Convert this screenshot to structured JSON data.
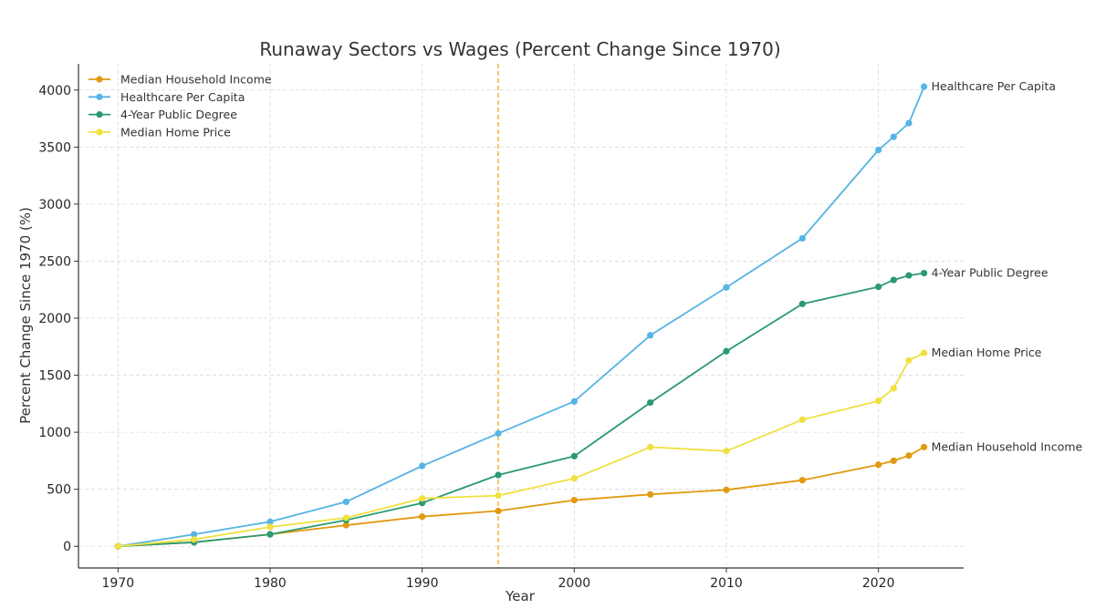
{
  "chart_data": {
    "type": "line",
    "title": "Runaway Sectors vs Wages (Percent Change Since 1970)",
    "xlabel": "Year",
    "ylabel": "Percent Change Since 1970 (%)",
    "xlim": [
      1967.4,
      2025.6
    ],
    "ylim": [
      -190,
      4230
    ],
    "xticks": [
      1970,
      1980,
      1990,
      2000,
      2010,
      2020
    ],
    "yticks": [
      0,
      500,
      1000,
      1500,
      2000,
      2500,
      3000,
      3500,
      4000
    ],
    "grid": true,
    "legend_position": "top-left",
    "reference_line": {
      "orientation": "vertical",
      "x": 1995,
      "style": "dashed",
      "color": "#f0b040"
    },
    "series": [
      {
        "name": "Median Household Income",
        "color": "#e1990f",
        "end_label": "Median Household Income",
        "x": [
          1970,
          1975,
          1980,
          1985,
          1990,
          1995,
          2000,
          2005,
          2010,
          2015,
          2020,
          2021,
          2022,
          2023
        ],
        "y": [
          0,
          35,
          105,
          185,
          260,
          310,
          405,
          455,
          495,
          580,
          715,
          750,
          795,
          870
        ]
      },
      {
        "name": "Healthcare Per Capita",
        "color": "#55b4e4",
        "end_label": "Healthcare Per Capita",
        "x": [
          1970,
          1975,
          1980,
          1985,
          1990,
          1995,
          2000,
          2005,
          2010,
          2015,
          2020,
          2021,
          2022,
          2023
        ],
        "y": [
          0,
          105,
          215,
          390,
          705,
          990,
          1270,
          1850,
          2270,
          2700,
          3475,
          3590,
          3710,
          4030
        ]
      },
      {
        "name": "4-Year Public Degree",
        "color": "#2a9a70",
        "end_label": "4-Year Public Degree",
        "x": [
          1970,
          1975,
          1980,
          1985,
          1990,
          1995,
          2000,
          2005,
          2010,
          2015,
          2020,
          2021,
          2022,
          2023
        ],
        "y": [
          0,
          35,
          105,
          230,
          380,
          625,
          790,
          1260,
          1710,
          2125,
          2275,
          2335,
          2375,
          2395
        ]
      },
      {
        "name": "Median Home Price",
        "color": "#f0e040",
        "end_label": "Median Home Price",
        "x": [
          1970,
          1975,
          1980,
          1985,
          1990,
          1995,
          2000,
          2005,
          2010,
          2015,
          2020,
          2021,
          2022,
          2023
        ],
        "y": [
          0,
          60,
          170,
          250,
          420,
          445,
          595,
          870,
          835,
          1110,
          1275,
          1385,
          1630,
          1695
        ]
      }
    ]
  }
}
